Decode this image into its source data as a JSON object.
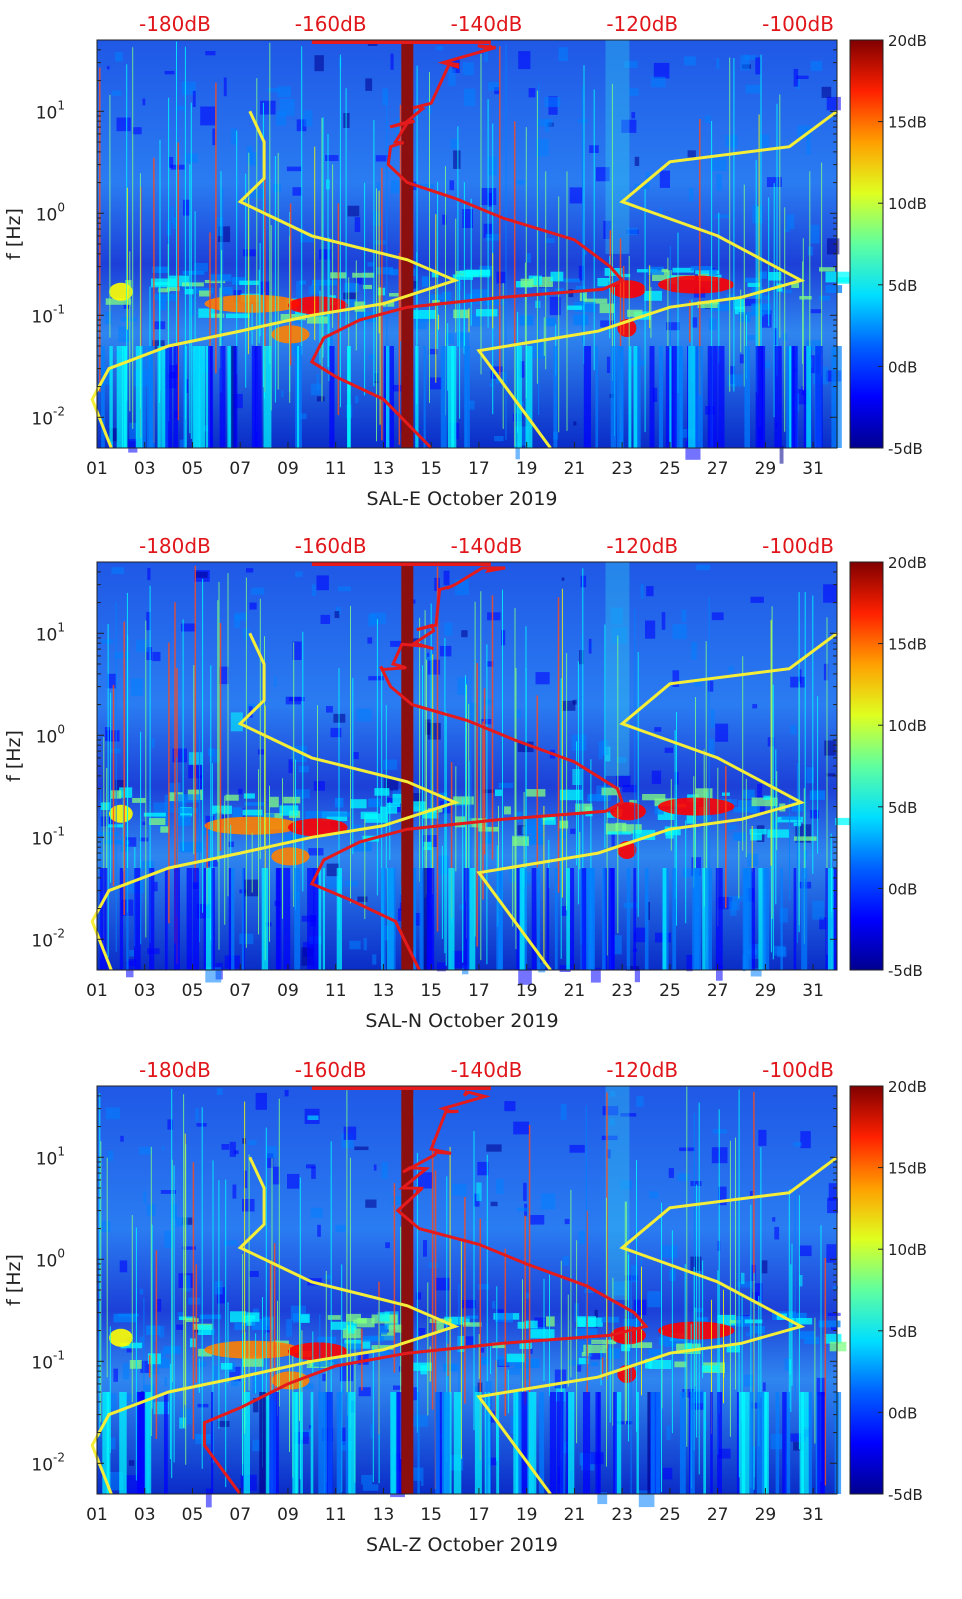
{
  "colors": {
    "noise_model_curves": "#f5ee38",
    "median_psd_curve": "#e41a1c",
    "gap_band": "#8b0f0f",
    "colormap_stops": [
      "#00008f",
      "#0000ff",
      "#0080ff",
      "#00ffff",
      "#80ff80",
      "#ffff00",
      "#ff8000",
      "#ff0000",
      "#800000"
    ]
  },
  "chart_data": [
    {
      "type": "heatmap",
      "id": "panel-east",
      "xlabel": "SAL-E October 2019",
      "ylabel": "f [Hz]",
      "x_ticks": [
        "01",
        "03",
        "05",
        "07",
        "09",
        "11",
        "13",
        "15",
        "17",
        "19",
        "21",
        "23",
        "25",
        "27",
        "29",
        "31"
      ],
      "x_range_days": [
        1,
        32
      ],
      "y_scale": "log",
      "y_range_hz": [
        0.005,
        50
      ],
      "y_ticks": [
        {
          "base": "10",
          "exp": "-2"
        },
        {
          "base": "10",
          "exp": "-1"
        },
        {
          "base": "10",
          "exp": "0"
        },
        {
          "base": "10",
          "exp": "1"
        }
      ],
      "top_axis_labels": [
        "-180dB",
        "-160dB",
        "-140dB",
        "-120dB",
        "-100dB"
      ],
      "top_axis_range_db": [
        -190,
        -95
      ],
      "colorbar": {
        "range_db": [
          -5,
          20
        ],
        "labels": [
          "20dB",
          "15dB",
          "10dB",
          "5dB",
          "0dB",
          "-5dB"
        ]
      },
      "data_gap_day": 14.0,
      "noise_model_low": [
        [
          7.4,
          10
        ],
        [
          8.0,
          5
        ],
        [
          8.0,
          2.2
        ],
        [
          7.0,
          1.3
        ],
        [
          10.0,
          0.6
        ],
        [
          14.0,
          0.35
        ],
        [
          16.0,
          0.22
        ],
        [
          13.0,
          0.13
        ],
        [
          10.0,
          0.1
        ],
        [
          7.0,
          0.07
        ],
        [
          4.0,
          0.05
        ],
        [
          1.5,
          0.03
        ],
        [
          0.8,
          0.015
        ],
        [
          1.6,
          0.005
        ]
      ],
      "noise_model_high": [
        [
          32,
          10
        ],
        [
          30,
          4.5
        ],
        [
          25,
          3.2
        ],
        [
          23,
          1.3
        ],
        [
          27,
          0.6
        ],
        [
          30.5,
          0.22
        ],
        [
          28,
          0.15
        ],
        [
          25,
          0.12
        ],
        [
          22,
          0.07
        ],
        [
          17,
          0.045
        ],
        [
          18.5,
          0.015
        ],
        [
          20,
          0.005
        ]
      ],
      "median_psd": [
        [
          17.5,
          45
        ],
        [
          15.5,
          30
        ],
        [
          15.0,
          12
        ],
        [
          14.0,
          8
        ],
        [
          13.5,
          5
        ],
        [
          13.2,
          3.0
        ],
        [
          14.0,
          2.0
        ],
        [
          16.0,
          1.4
        ],
        [
          18.0,
          0.9
        ],
        [
          21.0,
          0.55
        ],
        [
          22.5,
          0.3
        ],
        [
          23.0,
          0.22
        ],
        [
          22.2,
          0.18
        ],
        [
          18.0,
          0.15
        ],
        [
          14.0,
          0.12
        ],
        [
          12.0,
          0.09
        ],
        [
          10.5,
          0.06
        ],
        [
          10.0,
          0.035
        ],
        [
          11.0,
          0.025
        ],
        [
          13.0,
          0.015
        ],
        [
          15.0,
          0.005
        ]
      ]
    },
    {
      "type": "heatmap",
      "id": "panel-north",
      "xlabel": "SAL-N October 2019",
      "ylabel": "f [Hz]",
      "x_ticks": [
        "01",
        "03",
        "05",
        "07",
        "09",
        "11",
        "13",
        "15",
        "17",
        "19",
        "21",
        "23",
        "25",
        "27",
        "29",
        "31"
      ],
      "x_range_days": [
        1,
        32
      ],
      "y_scale": "log",
      "y_range_hz": [
        0.005,
        50
      ],
      "y_ticks": [
        {
          "base": "10",
          "exp": "-2"
        },
        {
          "base": "10",
          "exp": "-1"
        },
        {
          "base": "10",
          "exp": "0"
        },
        {
          "base": "10",
          "exp": "1"
        }
      ],
      "top_axis_labels": [
        "-180dB",
        "-160dB",
        "-140dB",
        "-120dB",
        "-100dB"
      ],
      "top_axis_range_db": [
        -190,
        -95
      ],
      "colorbar": {
        "range_db": [
          -5,
          20
        ],
        "labels": [
          "20dB",
          "15dB",
          "10dB",
          "5dB",
          "0dB",
          "-5dB"
        ]
      },
      "data_gap_day": 14.0,
      "noise_model_low": [
        [
          7.4,
          10
        ],
        [
          8.0,
          5
        ],
        [
          8.0,
          2.2
        ],
        [
          7.0,
          1.3
        ],
        [
          10.0,
          0.6
        ],
        [
          14.0,
          0.35
        ],
        [
          16.0,
          0.22
        ],
        [
          13.0,
          0.13
        ],
        [
          10.0,
          0.1
        ],
        [
          7.0,
          0.07
        ],
        [
          4.0,
          0.05
        ],
        [
          1.5,
          0.03
        ],
        [
          0.8,
          0.015
        ],
        [
          1.6,
          0.005
        ]
      ],
      "noise_model_high": [
        [
          32,
          10
        ],
        [
          30,
          4.5
        ],
        [
          25,
          3.2
        ],
        [
          23,
          1.3
        ],
        [
          27,
          0.6
        ],
        [
          30.5,
          0.22
        ],
        [
          28,
          0.15
        ],
        [
          25,
          0.12
        ],
        [
          22,
          0.07
        ],
        [
          17,
          0.045
        ],
        [
          18.5,
          0.015
        ],
        [
          20,
          0.005
        ]
      ],
      "median_psd": [
        [
          17.5,
          45
        ],
        [
          16.0,
          30
        ],
        [
          15.2,
          12
        ],
        [
          14.3,
          8
        ],
        [
          13.4,
          5
        ],
        [
          13.3,
          3.0
        ],
        [
          14.2,
          2.0
        ],
        [
          16.5,
          1.4
        ],
        [
          18.5,
          0.9
        ],
        [
          21.0,
          0.55
        ],
        [
          22.8,
          0.3
        ],
        [
          23.0,
          0.22
        ],
        [
          22.3,
          0.18
        ],
        [
          18.0,
          0.15
        ],
        [
          14.0,
          0.12
        ],
        [
          12.0,
          0.09
        ],
        [
          10.5,
          0.06
        ],
        [
          10.0,
          0.035
        ],
        [
          11.5,
          0.025
        ],
        [
          13.5,
          0.015
        ],
        [
          14.5,
          0.005
        ]
      ]
    },
    {
      "type": "heatmap",
      "id": "panel-vertical",
      "xlabel": "SAL-Z October 2019",
      "ylabel": "f [Hz]",
      "x_ticks": [
        "01",
        "03",
        "05",
        "07",
        "09",
        "11",
        "13",
        "15",
        "17",
        "19",
        "21",
        "23",
        "25",
        "27",
        "29",
        "31"
      ],
      "x_range_days": [
        1,
        32
      ],
      "y_scale": "log",
      "y_range_hz": [
        0.005,
        50
      ],
      "y_ticks": [
        {
          "base": "10",
          "exp": "-2"
        },
        {
          "base": "10",
          "exp": "-1"
        },
        {
          "base": "10",
          "exp": "0"
        },
        {
          "base": "10",
          "exp": "1"
        }
      ],
      "top_axis_labels": [
        "-180dB",
        "-160dB",
        "-140dB",
        "-120dB",
        "-100dB"
      ],
      "top_axis_range_db": [
        -190,
        -95
      ],
      "colorbar": {
        "range_db": [
          -5,
          20
        ],
        "labels": [
          "20dB",
          "15dB",
          "10dB",
          "5dB",
          "0dB",
          "-5dB"
        ]
      },
      "data_gap_day": 14.0,
      "noise_model_low": [
        [
          7.4,
          10
        ],
        [
          8.0,
          5
        ],
        [
          8.0,
          2.2
        ],
        [
          7.0,
          1.3
        ],
        [
          10.0,
          0.6
        ],
        [
          14.0,
          0.35
        ],
        [
          16.0,
          0.22
        ],
        [
          13.0,
          0.13
        ],
        [
          10.0,
          0.1
        ],
        [
          7.0,
          0.07
        ],
        [
          4.0,
          0.05
        ],
        [
          1.5,
          0.03
        ],
        [
          0.8,
          0.015
        ],
        [
          1.6,
          0.005
        ]
      ],
      "noise_model_high": [
        [
          32,
          10
        ],
        [
          30,
          4.5
        ],
        [
          25,
          3.2
        ],
        [
          23,
          1.3
        ],
        [
          27,
          0.6
        ],
        [
          30.5,
          0.22
        ],
        [
          28,
          0.15
        ],
        [
          25,
          0.12
        ],
        [
          22,
          0.07
        ],
        [
          17,
          0.045
        ],
        [
          18.5,
          0.015
        ],
        [
          20,
          0.005
        ]
      ],
      "median_psd": [
        [
          16.5,
          45
        ],
        [
          15.5,
          30
        ],
        [
          15.0,
          12
        ],
        [
          14.2,
          8
        ],
        [
          13.8,
          5
        ],
        [
          13.6,
          3.0
        ],
        [
          14.5,
          2.0
        ],
        [
          17.0,
          1.4
        ],
        [
          19.0,
          0.9
        ],
        [
          21.5,
          0.55
        ],
        [
          23.5,
          0.3
        ],
        [
          24.0,
          0.22
        ],
        [
          22.5,
          0.18
        ],
        [
          18.0,
          0.15
        ],
        [
          14.0,
          0.12
        ],
        [
          11.0,
          0.09
        ],
        [
          9.0,
          0.06
        ],
        [
          7.0,
          0.035
        ],
        [
          5.5,
          0.025
        ],
        [
          5.5,
          0.015
        ],
        [
          7.0,
          0.005
        ]
      ]
    }
  ]
}
